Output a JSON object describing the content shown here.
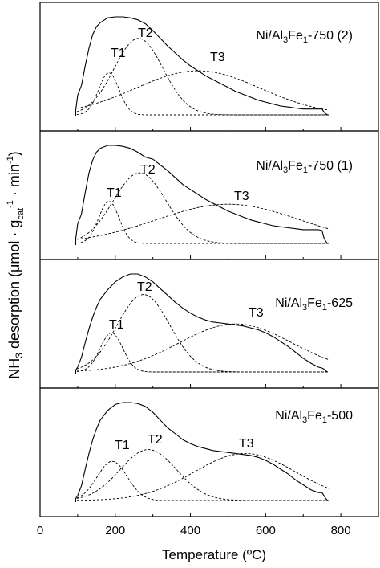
{
  "chart_data": [
    {
      "type": "line",
      "title": "Ni/Al3Fe1-750 (2)",
      "title_parts": [
        "Ni/Al",
        "3",
        "Fe",
        "1",
        "-750 (2)"
      ],
      "xlim": [
        0,
        900
      ],
      "series": [
        {
          "name": "",
          "style": "solid",
          "x": [
            95,
            100,
            110,
            120,
            130,
            140,
            150,
            160,
            180,
            200,
            220,
            240,
            260,
            280,
            300,
            320,
            340,
            360,
            380,
            400,
            420,
            440,
            460,
            480,
            500,
            520,
            540,
            560,
            580,
            600,
            620,
            640,
            660,
            680,
            700,
            720,
            740,
            750,
            755,
            760,
            765
          ],
          "y": [
            0.05,
            0.2,
            0.3,
            0.5,
            0.68,
            0.82,
            0.9,
            0.94,
            0.99,
            1.0,
            1.0,
            0.99,
            0.97,
            0.93,
            0.86,
            0.78,
            0.7,
            0.63,
            0.56,
            0.5,
            0.45,
            0.4,
            0.36,
            0.32,
            0.28,
            0.24,
            0.21,
            0.18,
            0.15,
            0.13,
            0.11,
            0.09,
            0.08,
            0.07,
            0.06,
            0.06,
            0.06,
            0.06,
            0.03,
            0.01,
            0.0
          ]
        },
        {
          "name": "T1",
          "style": "dashed",
          "center": 183,
          "height": 0.43,
          "sigma": 27
        },
        {
          "name": "T2",
          "style": "dashed",
          "center": 262,
          "height": 0.78,
          "sigma": 65
        },
        {
          "name": "T3",
          "style": "dashed",
          "center": 420,
          "height": 0.45,
          "sigma": 165
        }
      ],
      "peak_labels": [
        "T1",
        "T2",
        "T3"
      ]
    },
    {
      "type": "line",
      "title": "Ni/Al3Fe1-750 (1)",
      "title_parts": [
        "Ni/Al",
        "3",
        "Fe",
        "1",
        "-750 (1)"
      ],
      "xlim": [
        0,
        900
      ],
      "series": [
        {
          "name": "",
          "style": "solid",
          "x": [
            95,
            100,
            110,
            120,
            130,
            140,
            150,
            160,
            180,
            200,
            220,
            240,
            260,
            280,
            300,
            320,
            340,
            360,
            380,
            400,
            420,
            440,
            460,
            480,
            500,
            520,
            540,
            560,
            580,
            600,
            620,
            640,
            660,
            680,
            700,
            720,
            740,
            750,
            755,
            760,
            765
          ],
          "y": [
            0.05,
            0.2,
            0.3,
            0.52,
            0.72,
            0.85,
            0.93,
            0.97,
            1.0,
            1.0,
            0.99,
            0.97,
            0.93,
            0.88,
            0.86,
            0.8,
            0.74,
            0.67,
            0.6,
            0.55,
            0.5,
            0.45,
            0.41,
            0.37,
            0.33,
            0.3,
            0.27,
            0.24,
            0.22,
            0.2,
            0.18,
            0.17,
            0.16,
            0.15,
            0.14,
            0.14,
            0.14,
            0.13,
            0.06,
            0.02,
            0.0
          ]
        },
        {
          "name": "T1",
          "style": "dashed",
          "center": 183,
          "height": 0.43,
          "sigma": 27
        },
        {
          "name": "T2",
          "style": "dashed",
          "center": 265,
          "height": 0.72,
          "sigma": 70
        },
        {
          "name": "T3",
          "style": "dashed",
          "center": 500,
          "height": 0.4,
          "sigma": 190
        }
      ],
      "peak_labels": [
        "T1",
        "T2",
        "T3"
      ]
    },
    {
      "type": "line",
      "title": "Ni/Al3Fe1-625",
      "title_parts": [
        "Ni/Al",
        "3",
        "Fe",
        "1",
        "-625"
      ],
      "xlim": [
        0,
        900
      ],
      "series": [
        {
          "name": "",
          "style": "solid",
          "x": [
            95,
            100,
            110,
            120,
            130,
            140,
            150,
            160,
            180,
            200,
            220,
            240,
            260,
            280,
            300,
            320,
            340,
            360,
            380,
            400,
            420,
            440,
            460,
            480,
            500,
            520,
            540,
            560,
            580,
            600,
            620,
            640,
            660,
            680,
            700,
            720,
            740,
            750,
            755,
            760,
            765
          ],
          "y": [
            0.02,
            0.05,
            0.15,
            0.3,
            0.44,
            0.56,
            0.66,
            0.74,
            0.84,
            0.92,
            0.97,
            1.0,
            1.0,
            0.97,
            0.92,
            0.85,
            0.78,
            0.71,
            0.65,
            0.6,
            0.56,
            0.53,
            0.51,
            0.5,
            0.49,
            0.48,
            0.47,
            0.45,
            0.43,
            0.4,
            0.36,
            0.31,
            0.26,
            0.2,
            0.14,
            0.09,
            0.05,
            0.04,
            0.03,
            0.01,
            0.0
          ]
        },
        {
          "name": "T1",
          "style": "dashed",
          "center": 190,
          "height": 0.4,
          "sigma": 30
        },
        {
          "name": "T2",
          "style": "dashed",
          "center": 275,
          "height": 0.79,
          "sigma": 70
        },
        {
          "name": "T3",
          "style": "dashed",
          "center": 520,
          "height": 0.49,
          "sigma": 150
        }
      ],
      "peak_labels": [
        "T1",
        "T2",
        "T3"
      ]
    },
    {
      "type": "line",
      "title": "Ni/Al3Fe1-500",
      "title_parts": [
        "Ni/Al",
        "3",
        "Fe",
        "1",
        "-500"
      ],
      "xlim": [
        0,
        900
      ],
      "xlabel": "Temperature (ºC)",
      "xticks": [
        0,
        200,
        400,
        600,
        800
      ],
      "series": [
        {
          "name": "",
          "style": "solid",
          "x": [
            95,
            100,
            110,
            120,
            130,
            140,
            150,
            160,
            180,
            200,
            220,
            240,
            260,
            280,
            300,
            320,
            340,
            360,
            380,
            400,
            420,
            440,
            460,
            480,
            500,
            520,
            540,
            560,
            580,
            600,
            620,
            640,
            660,
            680,
            700,
            720,
            740,
            750,
            755,
            760,
            765
          ],
          "y": [
            0.02,
            0.05,
            0.15,
            0.32,
            0.48,
            0.62,
            0.73,
            0.82,
            0.92,
            0.98,
            1.0,
            1.0,
            0.99,
            0.96,
            0.9,
            0.82,
            0.74,
            0.68,
            0.62,
            0.58,
            0.55,
            0.53,
            0.51,
            0.5,
            0.49,
            0.48,
            0.47,
            0.46,
            0.44,
            0.41,
            0.37,
            0.32,
            0.27,
            0.21,
            0.16,
            0.11,
            0.08,
            0.08,
            0.05,
            0.02,
            0.0
          ]
        },
        {
          "name": "T1",
          "style": "dashed",
          "center": 192,
          "height": 0.4,
          "sigma": 40
        },
        {
          "name": "T2",
          "style": "dashed",
          "center": 288,
          "height": 0.52,
          "sigma": 75
        },
        {
          "name": "T3",
          "style": "dashed",
          "center": 545,
          "height": 0.48,
          "sigma": 135
        }
      ],
      "peak_labels": [
        "T1",
        "T2",
        "T3"
      ]
    }
  ],
  "ylabel_parts": [
    "NH",
    "3",
    " desorption (μmol · g",
    "cat",
    "-1",
    " · min",
    "-1",
    ")"
  ]
}
